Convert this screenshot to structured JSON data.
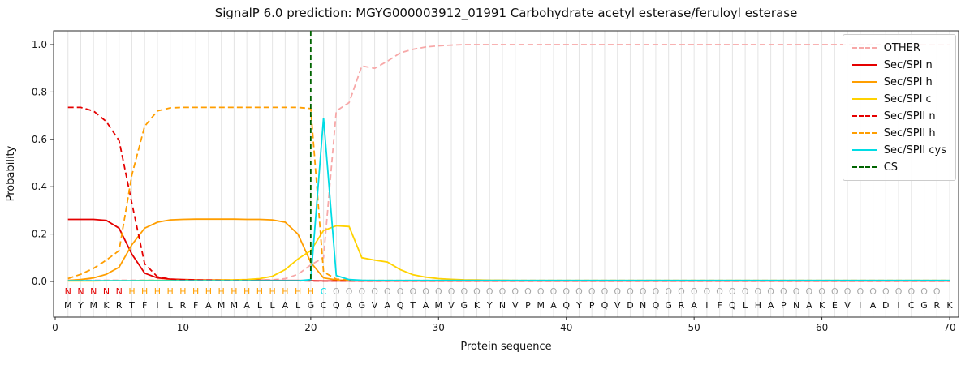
{
  "chart_data": {
    "type": "line",
    "title": "SignalP 6.0 prediction: MGYG000003912_01991 Carbohydrate acetyl esterase/feruloyl esterase",
    "xlabel": "Protein sequence",
    "ylabel": "Probability",
    "xticks": [
      0,
      10,
      20,
      30,
      40,
      50,
      60,
      70
    ],
    "yticks": [
      "0.0",
      "0.2",
      "0.4",
      "0.6",
      "0.8",
      "1.0"
    ],
    "xlim": [
      -0.15,
      70.7
    ],
    "ylim": [
      -0.15,
      1.06
    ],
    "grid": "vertical-per-residue",
    "legend_position": "upper right",
    "cs_position": 20,
    "cs": {
      "name": "CS",
      "color": "#006400",
      "dash": true
    },
    "sequence": "MYMKRTFILRFAMMALLALGCQAGVAQTAMVGKYNVPMAQYPQVDNQGRAIFQLHAPNAKEVIADICGRK",
    "annotation": "NNNNNHHHHHHHHHHHHHHHCOOOOOOOOOOOOOOOOOOOOOOOOOOOOOOOOOOOOOOOOOOOOOOOO",
    "annotation_colors": {
      "N": "#e50000",
      "H": "#ff9e00",
      "C": "#00dce4",
      "O": "#a8a8a8"
    },
    "series": [
      {
        "name": "OTHER",
        "color": "#f7a8a8",
        "dash": true,
        "values": [
          0.005,
          0.005,
          0.005,
          0.005,
          0.005,
          0.005,
          0.005,
          0.005,
          0.005,
          0.005,
          0.005,
          0.005,
          0.005,
          0.005,
          0.005,
          0.005,
          0.007,
          0.012,
          0.03,
          0.07,
          0.1,
          0.72,
          0.755,
          0.91,
          0.9,
          0.93,
          0.965,
          0.98,
          0.99,
          0.995,
          0.998,
          1,
          1,
          1,
          1,
          1,
          1,
          1,
          1,
          1,
          1,
          1,
          1,
          1,
          1,
          1,
          1,
          1,
          1,
          1,
          1,
          1,
          1,
          1,
          1,
          1,
          1,
          1,
          1,
          1,
          1,
          1,
          1,
          1,
          1,
          1,
          1,
          1,
          1,
          1
        ]
      },
      {
        "name": "Sec/SPI n",
        "color": "#e50000",
        "dash": false,
        "values": [
          0.262,
          0.262,
          0.262,
          0.258,
          0.225,
          0.115,
          0.035,
          0.015,
          0.01,
          0.008,
          0.007,
          0.006,
          0.006,
          0.005,
          0.005,
          0.005,
          0.004,
          0.004,
          0.004,
          0.003,
          0.002,
          0.002,
          0.002,
          0.002,
          0.002,
          0.002,
          0.002,
          0.002,
          0.002,
          0.002,
          0.002,
          0.002,
          0.002,
          0.002,
          0.002,
          0.002,
          0.002,
          0.002,
          0.002,
          0.002,
          0.002,
          0.002,
          0.002,
          0.002,
          0.002,
          0.002,
          0.002,
          0.002,
          0.002,
          0.002,
          0.002,
          0.002,
          0.002,
          0.002,
          0.002,
          0.002,
          0.002,
          0.002,
          0.002,
          0.002,
          0.002,
          0.002,
          0.002,
          0.002,
          0.002,
          0.002,
          0.002,
          0.002,
          0.002,
          0.002
        ]
      },
      {
        "name": "Sec/SPI h",
        "color": "#ff9e00",
        "dash": false,
        "values": [
          0.004,
          0.008,
          0.015,
          0.03,
          0.06,
          0.155,
          0.225,
          0.25,
          0.26,
          0.262,
          0.263,
          0.263,
          0.263,
          0.263,
          0.262,
          0.262,
          0.26,
          0.25,
          0.2,
          0.08,
          0.015,
          0.006,
          0.004,
          0.003,
          0.003,
          0.003,
          0.003,
          0.003,
          0.003,
          0.003,
          0.003,
          0.003,
          0.003,
          0.003,
          0.003,
          0.003,
          0.003,
          0.003,
          0.003,
          0.003,
          0.003,
          0.003,
          0.003,
          0.003,
          0.003,
          0.003,
          0.003,
          0.003,
          0.003,
          0.003,
          0.003,
          0.003,
          0.003,
          0.003,
          0.003,
          0.003,
          0.003,
          0.003,
          0.003,
          0.003,
          0.003,
          0.003,
          0.003,
          0.003,
          0.003,
          0.003,
          0.003,
          0.003,
          0.003,
          0.003
        ]
      },
      {
        "name": "Sec/SPI c",
        "color": "#ffd200",
        "dash": false,
        "values": [
          0.002,
          0.002,
          0.002,
          0.003,
          0.003,
          0.003,
          0.004,
          0.004,
          0.004,
          0.005,
          0.005,
          0.005,
          0.006,
          0.007,
          0.008,
          0.012,
          0.022,
          0.05,
          0.095,
          0.13,
          0.215,
          0.235,
          0.232,
          0.1,
          0.09,
          0.082,
          0.05,
          0.028,
          0.018,
          0.012,
          0.009,
          0.007,
          0.006,
          0.005,
          0.005,
          0.004,
          0.004,
          0.004,
          0.004,
          0.004,
          0.004,
          0.004,
          0.004,
          0.004,
          0.004,
          0.004,
          0.004,
          0.004,
          0.004,
          0.004,
          0.004,
          0.004,
          0.004,
          0.004,
          0.004,
          0.004,
          0.004,
          0.004,
          0.004,
          0.004,
          0.004,
          0.004,
          0.004,
          0.004,
          0.004,
          0.004,
          0.004,
          0.004,
          0.004,
          0.004
        ]
      },
      {
        "name": "Sec/SPII n",
        "color": "#e50000",
        "dash": true,
        "values": [
          0.735,
          0.735,
          0.72,
          0.675,
          0.595,
          0.33,
          0.075,
          0.02,
          0.01,
          0.007,
          0.005,
          0.005,
          0.004,
          0.004,
          0.004,
          0.003,
          0.003,
          0.003,
          0.003,
          0.002,
          0.002,
          0.002,
          0.002,
          0.002,
          0.002,
          0.002,
          0.002,
          0.002,
          0.002,
          0.002,
          0.002,
          0.002,
          0.002,
          0.002,
          0.002,
          0.002,
          0.002,
          0.002,
          0.002,
          0.002,
          0.002,
          0.002,
          0.002,
          0.002,
          0.002,
          0.002,
          0.002,
          0.002,
          0.002,
          0.002,
          0.002,
          0.002,
          0.002,
          0.002,
          0.002,
          0.002,
          0.002,
          0.002,
          0.002,
          0.002,
          0.002,
          0.002,
          0.002,
          0.002,
          0.002,
          0.002,
          0.002,
          0.002,
          0.002,
          0.002
        ]
      },
      {
        "name": "Sec/SPII h",
        "color": "#ff9e00",
        "dash": true,
        "values": [
          0.012,
          0.03,
          0.055,
          0.09,
          0.13,
          0.45,
          0.655,
          0.72,
          0.733,
          0.735,
          0.735,
          0.735,
          0.735,
          0.735,
          0.735,
          0.735,
          0.735,
          0.735,
          0.735,
          0.73,
          0.04,
          0.01,
          0.006,
          0.004,
          0.004,
          0.004,
          0.004,
          0.004,
          0.004,
          0.004,
          0.004,
          0.004,
          0.004,
          0.004,
          0.004,
          0.004,
          0.004,
          0.004,
          0.004,
          0.004,
          0.004,
          0.004,
          0.004,
          0.004,
          0.004,
          0.004,
          0.004,
          0.004,
          0.004,
          0.004,
          0.004,
          0.004,
          0.004,
          0.004,
          0.004,
          0.004,
          0.004,
          0.004,
          0.004,
          0.004,
          0.004,
          0.004,
          0.004,
          0.004,
          0.004,
          0.004,
          0.004,
          0.004,
          0.004,
          0.004
        ]
      },
      {
        "name": "Sec/SPII cys",
        "color": "#00dce4",
        "dash": false,
        "values": [
          0.003,
          0.003,
          0.003,
          0.003,
          0.003,
          0.003,
          0.003,
          0.003,
          0.003,
          0.003,
          0.003,
          0.003,
          0.003,
          0.003,
          0.003,
          0.003,
          0.003,
          0.003,
          0.003,
          0.008,
          0.69,
          0.025,
          0.008,
          0.005,
          0.004,
          0.004,
          0.004,
          0.004,
          0.004,
          0.004,
          0.004,
          0.004,
          0.004,
          0.004,
          0.004,
          0.004,
          0.004,
          0.004,
          0.004,
          0.004,
          0.004,
          0.004,
          0.004,
          0.004,
          0.004,
          0.004,
          0.004,
          0.004,
          0.004,
          0.004,
          0.004,
          0.004,
          0.004,
          0.004,
          0.004,
          0.004,
          0.004,
          0.004,
          0.004,
          0.004,
          0.004,
          0.004,
          0.004,
          0.004,
          0.004,
          0.004,
          0.004,
          0.004,
          0.004,
          0.004
        ]
      }
    ]
  },
  "legend": {
    "items": [
      {
        "label": "OTHER",
        "color": "#f7a8a8",
        "dash": true
      },
      {
        "label": "Sec/SPI n",
        "color": "#e50000",
        "dash": false
      },
      {
        "label": "Sec/SPI h",
        "color": "#ff9e00",
        "dash": false
      },
      {
        "label": "Sec/SPI c",
        "color": "#ffd200",
        "dash": false
      },
      {
        "label": "Sec/SPII n",
        "color": "#e50000",
        "dash": true
      },
      {
        "label": "Sec/SPII h",
        "color": "#ff9e00",
        "dash": true
      },
      {
        "label": "Sec/SPII cys",
        "color": "#00dce4",
        "dash": false
      },
      {
        "label": "CS",
        "color": "#006400",
        "dash": true
      }
    ]
  }
}
